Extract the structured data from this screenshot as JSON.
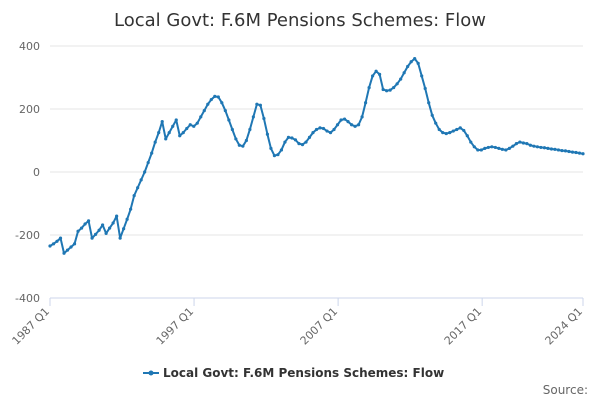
{
  "chart_data": {
    "type": "line",
    "title": "Local Govt: F.6M Pensions Schemes: Flow",
    "xlabel": "",
    "ylabel": "",
    "ylim": [
      -400,
      400
    ],
    "y_ticks": [
      -400,
      -200,
      0,
      200,
      400
    ],
    "x_tick_labels": [
      "1987 Q1",
      "1997 Q1",
      "2007 Q1",
      "2017 Q1",
      "2024 Q1"
    ],
    "x_start": "1987 Q1",
    "x_end": "2024 Q1",
    "grid": "horizontal",
    "legend_position": "bottom-center",
    "series_color": "#1f77b4",
    "credits": "Source:",
    "series": [
      {
        "name": "Local Govt: F.6M Pensions Schemes: Flow",
        "values": [
          -235,
          -228,
          -220,
          -210,
          -258,
          -248,
          -238,
          -228,
          -188,
          -178,
          -165,
          -155,
          -210,
          -198,
          -185,
          -168,
          -195,
          -178,
          -162,
          -140,
          -210,
          -180,
          -150,
          -118,
          -75,
          -50,
          -25,
          0,
          30,
          60,
          95,
          125,
          160,
          105,
          125,
          145,
          165,
          115,
          125,
          138,
          150,
          145,
          155,
          175,
          195,
          215,
          230,
          240,
          238,
          220,
          195,
          165,
          135,
          105,
          85,
          82,
          100,
          135,
          175,
          215,
          212,
          170,
          120,
          75,
          52,
          55,
          70,
          95,
          110,
          108,
          102,
          90,
          87,
          95,
          110,
          125,
          135,
          140,
          138,
          130,
          125,
          135,
          150,
          165,
          168,
          160,
          150,
          145,
          150,
          175,
          220,
          268,
          305,
          320,
          310,
          262,
          258,
          260,
          268,
          280,
          295,
          315,
          335,
          350,
          360,
          345,
          305,
          265,
          220,
          180,
          155,
          135,
          125,
          122,
          125,
          130,
          135,
          140,
          132,
          115,
          95,
          80,
          70,
          70,
          75,
          78,
          80,
          78,
          75,
          72,
          70,
          75,
          82,
          90,
          95,
          92,
          90,
          85,
          82,
          80,
          78,
          77,
          75,
          73,
          72,
          70,
          68,
          67,
          65,
          63,
          62,
          60,
          58
        ]
      }
    ]
  }
}
